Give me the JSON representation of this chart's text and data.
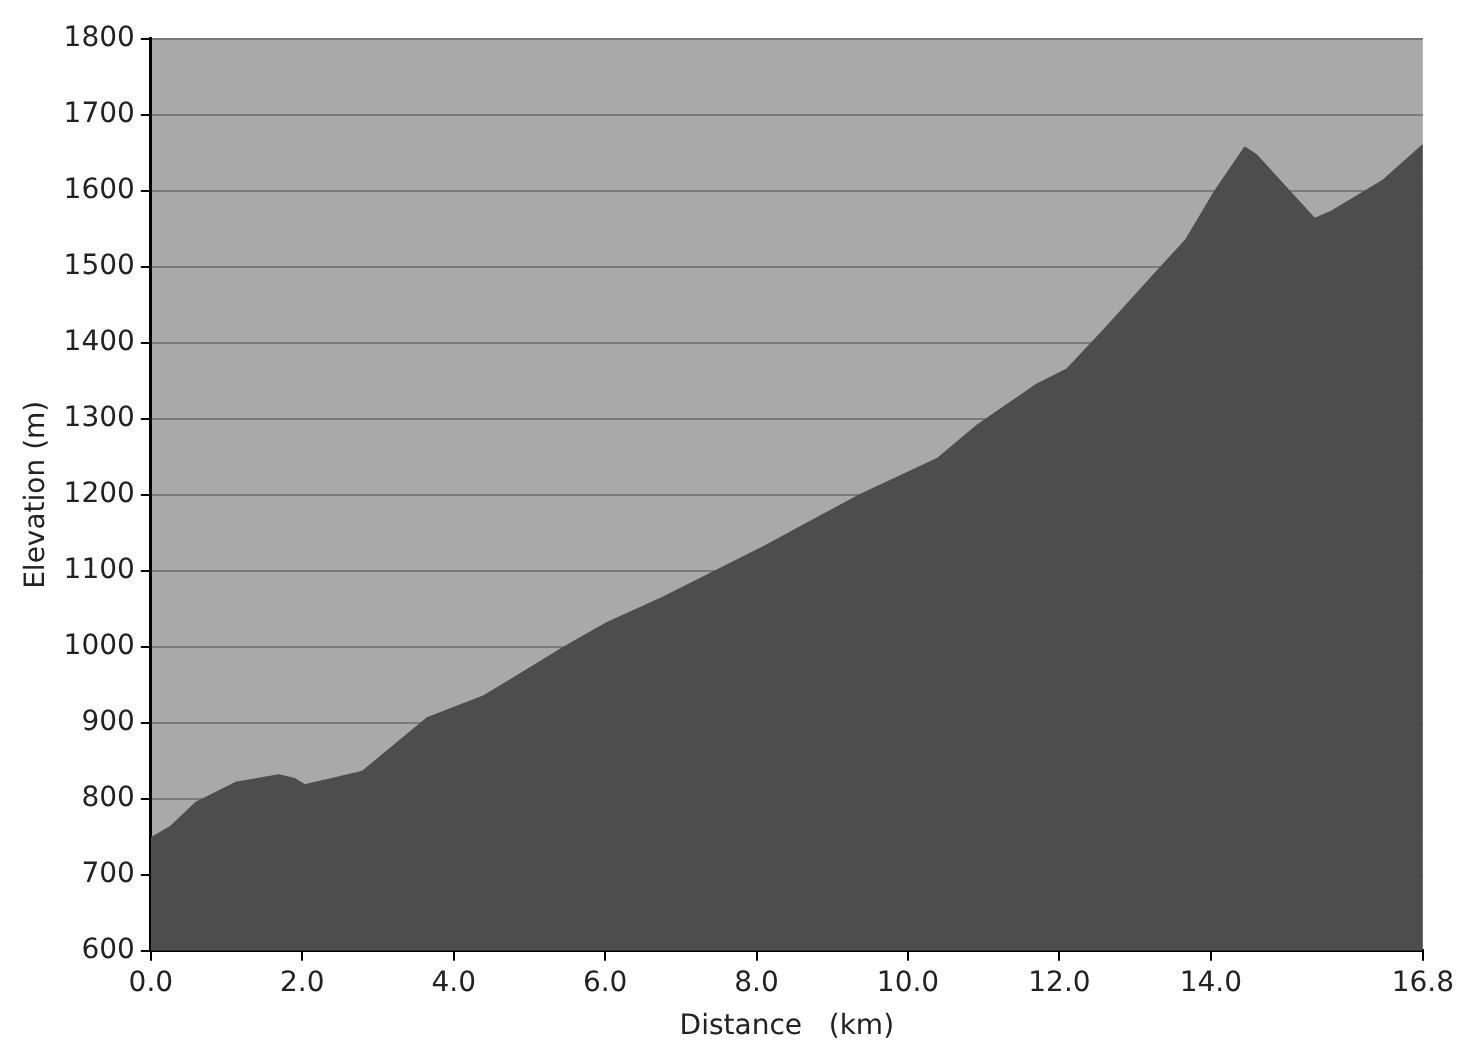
{
  "chart_data": {
    "type": "area",
    "xlabel": "Distance   (km)",
    "ylabel": "Elevation (m)",
    "xlim": [
      0,
      16.8
    ],
    "xticks": [
      {
        "value": 0,
        "label": "0.0"
      },
      {
        "value": 2,
        "label": "2.0"
      },
      {
        "value": 4,
        "label": "4.0"
      },
      {
        "value": 6,
        "label": "6.0"
      },
      {
        "value": 8,
        "label": "8.0"
      },
      {
        "value": 10,
        "label": "10.0"
      },
      {
        "value": 12,
        "label": "12.0"
      },
      {
        "value": 14,
        "label": "14.0"
      },
      {
        "value": 16.8,
        "label": "16.8"
      }
    ],
    "ylim": [
      600,
      1800
    ],
    "yticks": [
      600,
      700,
      800,
      900,
      1000,
      1100,
      1200,
      1300,
      1400,
      1500,
      1600,
      1700,
      1800
    ],
    "grid": "y",
    "legend": false,
    "series": [
      {
        "color": "#4d4d4d",
        "x": [
          0,
          0.26,
          0.6,
          1.12,
          1.69,
          1.9,
          2.03,
          2.73,
          2.8,
          3.65,
          4.4,
          5.47,
          6.0,
          6.77,
          8.07,
          9.37,
          10.4,
          10.9,
          11.7,
          12.1,
          12.6,
          13.3,
          13.67,
          14.06,
          14.45,
          14.6,
          15.37,
          15.6,
          16.27,
          16.8
        ],
        "values": [
          748,
          763,
          795,
          821,
          831,
          826,
          818,
          834,
          836,
          906,
          935,
          1000,
          1030,
          1065,
          1130,
          1200,
          1248,
          1290,
          1345,
          1365,
          1418,
          1495,
          1535,
          1600,
          1657,
          1647,
          1563,
          1573,
          1613,
          1660
        ]
      }
    ]
  }
}
